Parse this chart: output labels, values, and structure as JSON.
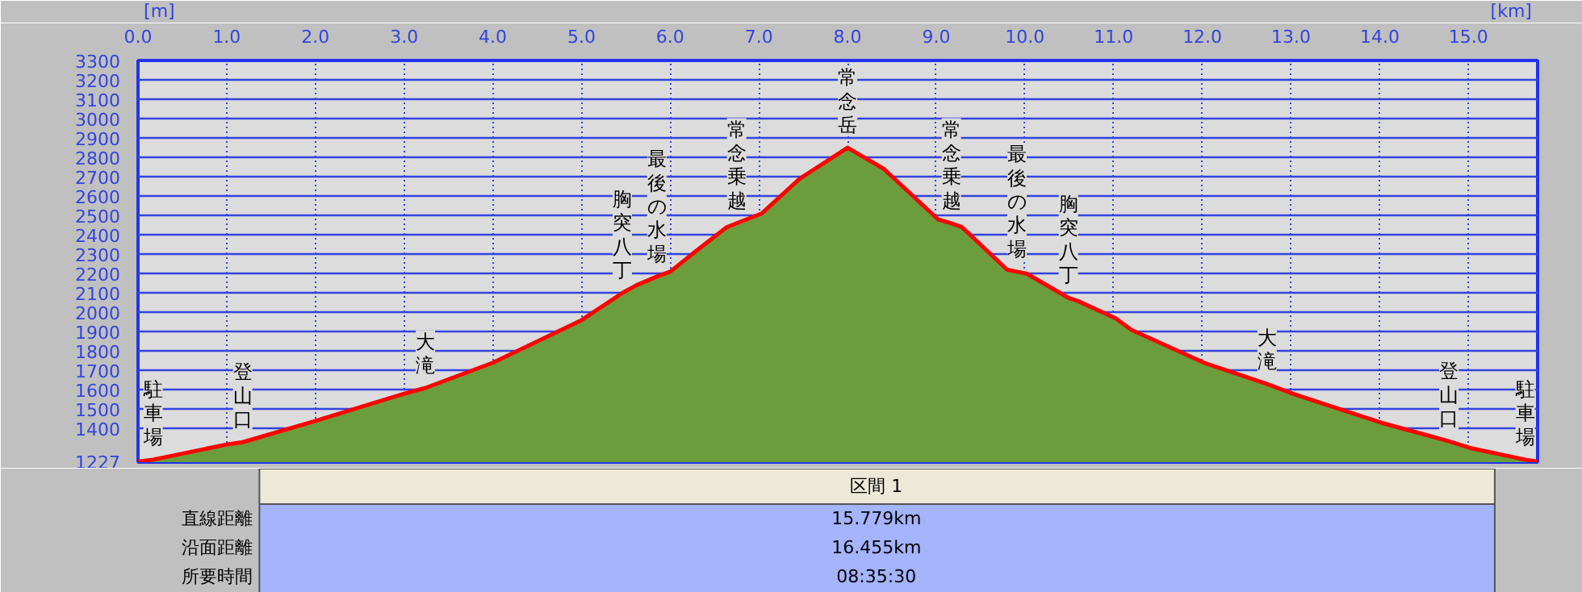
{
  "chart_data": {
    "type": "area",
    "xlabel": "[km]",
    "ylabel": "[m]",
    "x": [
      0,
      0.17,
      1.02,
      1.18,
      2.0,
      3.0,
      3.24,
      4.0,
      5.0,
      5.46,
      5.62,
      5.85,
      6.0,
      6.3,
      6.64,
      6.75,
      7.03,
      7.46,
      8.0,
      8.41,
      9.02,
      9.17,
      9.29,
      9.8,
      9.91,
      10.02,
      10.49,
      10.59,
      11.02,
      11.2,
      12.02,
      12.73,
      13.02,
      14.02,
      14.78,
      15.02,
      15.64,
      15.78
    ],
    "series": [
      {
        "color": "#6b9e3a",
        "values": [
          1230,
          1240,
          1320,
          1330,
          1440,
          1580,
          1610,
          1740,
          1960,
          2100,
          2140,
          2185,
          2210,
          2320,
          2440,
          2460,
          2510,
          2690,
          2850,
          2740,
          2480,
          2460,
          2440,
          2220,
          2210,
          2200,
          2075,
          2060,
          1970,
          1910,
          1740,
          1630,
          1580,
          1430,
          1335,
          1300,
          1240,
          1230
        ]
      }
    ],
    "xlim": [
      0,
      15.78
    ],
    "xticks": [
      {
        "value": 0,
        "label": "0.0"
      },
      {
        "value": 1,
        "label": "1.0"
      },
      {
        "value": 2,
        "label": "2.0"
      },
      {
        "value": 3,
        "label": "3.0"
      },
      {
        "value": 4,
        "label": "4.0"
      },
      {
        "value": 5,
        "label": "5.0"
      },
      {
        "value": 6,
        "label": "6.0"
      },
      {
        "value": 7,
        "label": "7.0"
      },
      {
        "value": 8,
        "label": "8.0"
      },
      {
        "value": 9,
        "label": "9.0"
      },
      {
        "value": 10,
        "label": "10.0"
      },
      {
        "value": 11,
        "label": "11.0"
      },
      {
        "value": 12,
        "label": "12.0"
      },
      {
        "value": 13,
        "label": "13.0"
      },
      {
        "value": 14,
        "label": "14.0"
      },
      {
        "value": 15,
        "label": "15.0"
      }
    ],
    "ylim": [
      1227,
      3300
    ],
    "yticks": [
      1227,
      1400,
      1500,
      1600,
      1700,
      1800,
      1900,
      2000,
      2100,
      2200,
      2300,
      2400,
      2500,
      2600,
      2700,
      2800,
      2900,
      3000,
      3100,
      3200,
      3300
    ],
    "grid": true,
    "annotations": [
      {
        "text": "駐車場",
        "x": 0.17,
        "y": 1240
      },
      {
        "text": "登山口",
        "x": 1.18,
        "y": 1330
      },
      {
        "text": "大滝",
        "x": 3.24,
        "y": 1610
      },
      {
        "text": "胸突八丁",
        "x": 5.46,
        "y": 2100
      },
      {
        "text": "最後の水場",
        "x": 5.85,
        "y": 2185
      },
      {
        "text": "常念乗越",
        "x": 6.75,
        "y": 2460
      },
      {
        "text": "常念岳",
        "x": 8.0,
        "y": 2850
      },
      {
        "text": "常念乗越",
        "x": 9.17,
        "y": 2460
      },
      {
        "text": "最後の水場",
        "x": 9.91,
        "y": 2210
      },
      {
        "text": "胸突八丁",
        "x": 10.49,
        "y": 2075
      },
      {
        "text": "大滝",
        "x": 12.73,
        "y": 1630
      },
      {
        "text": "登山口",
        "x": 14.78,
        "y": 1335
      },
      {
        "text": "駐車場",
        "x": 15.64,
        "y": 1240
      },
      "区間 1",
      "直線距離",
      "15.779km",
      "沿面距離",
      "16.455km",
      "所要時間",
      "08:35:30"
    ]
  }
}
